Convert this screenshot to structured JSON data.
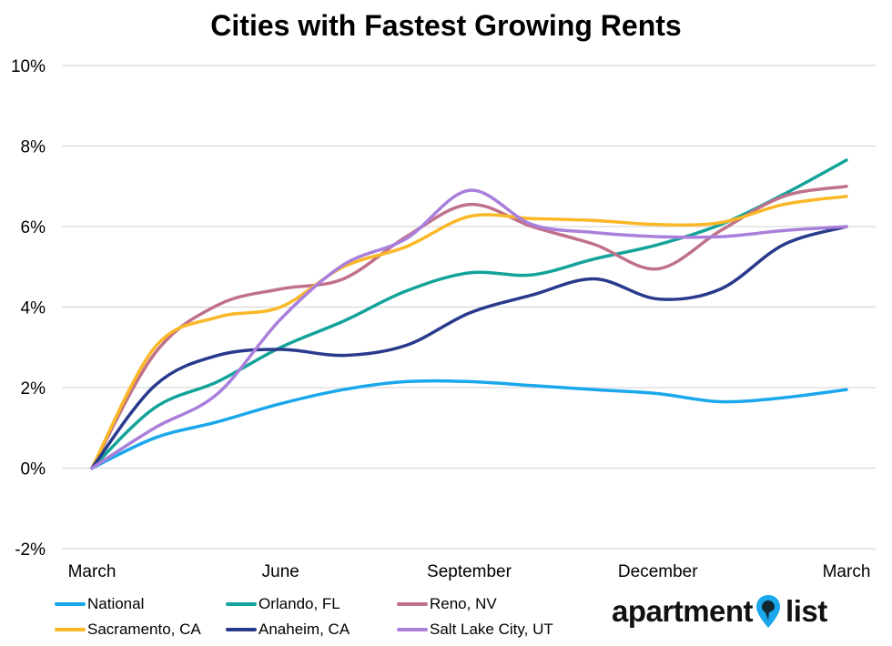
{
  "chart_data": {
    "type": "line",
    "title": "Cities with Fastest Growing Rents",
    "xlabel": "",
    "ylabel": "",
    "x_tick_labels": [
      "March",
      "June",
      "September",
      "December",
      "March"
    ],
    "x_tick_positions": [
      0,
      3,
      6,
      9,
      12
    ],
    "y_tick_labels": [
      "-2%",
      "0%",
      "2%",
      "4%",
      "6%",
      "8%",
      "10%"
    ],
    "y_tick_values": [
      -2,
      0,
      2,
      4,
      6,
      8,
      10
    ],
    "ylim": [
      -2,
      10
    ],
    "xlim": [
      0,
      12
    ],
    "grid": "horizontal",
    "legend_position": "bottom-left",
    "x": [
      0,
      1,
      2,
      3,
      4,
      5,
      6,
      7,
      8,
      9,
      10,
      11,
      12
    ],
    "series": [
      {
        "name": "National",
        "color": "#1aa7ec",
        "values": [
          0.0,
          0.75,
          1.15,
          1.6,
          1.95,
          2.15,
          2.15,
          2.05,
          1.95,
          1.85,
          1.65,
          1.75,
          1.95
        ]
      },
      {
        "name": "Orlando, FL",
        "color": "#14a39a",
        "values": [
          0.0,
          1.5,
          2.15,
          3.0,
          3.65,
          4.4,
          4.85,
          4.8,
          5.2,
          5.55,
          6.05,
          6.8,
          7.65
        ]
      },
      {
        "name": "Reno, NV",
        "color": "#c0718a",
        "values": [
          0.0,
          2.85,
          4.05,
          4.45,
          4.7,
          5.75,
          6.55,
          6.0,
          5.55,
          4.95,
          5.9,
          6.75,
          7.0
        ]
      },
      {
        "name": "Sacramento, CA",
        "color": "#fbb826",
        "values": [
          0.0,
          3.0,
          3.75,
          4.0,
          5.0,
          5.5,
          6.25,
          6.2,
          6.15,
          6.05,
          6.1,
          6.55,
          6.75
        ]
      },
      {
        "name": "Anaheim, CA",
        "color": "#293a8c",
        "values": [
          0.0,
          2.05,
          2.8,
          2.95,
          2.8,
          3.05,
          3.85,
          4.3,
          4.7,
          4.2,
          4.45,
          5.55,
          6.0
        ]
      },
      {
        "name": "Salt Lake City, UT",
        "color": "#a97fdb",
        "values": [
          0.0,
          1.0,
          1.85,
          3.7,
          5.05,
          5.7,
          6.9,
          6.05,
          5.85,
          5.75,
          5.75,
          5.9,
          6.0
        ]
      }
    ]
  },
  "legend": {
    "items": [
      {
        "label": "National",
        "color": "#1aa7ec"
      },
      {
        "label": "Orlando, FL",
        "color": "#14a39a"
      },
      {
        "label": "Reno, NV",
        "color": "#c0718a"
      },
      {
        "label": "Sacramento, CA",
        "color": "#fbb826"
      },
      {
        "label": "Anaheim, CA",
        "color": "#293a8c"
      },
      {
        "label": "Salt Lake City, UT",
        "color": "#a97fdb"
      }
    ]
  },
  "brand": {
    "part1": "apartment",
    "part2": "list",
    "pin_color": "#1aa7ec",
    "icon": "map-pin-icon"
  },
  "colors": {
    "grid": "#d9d9d9",
    "text": "#000000"
  }
}
